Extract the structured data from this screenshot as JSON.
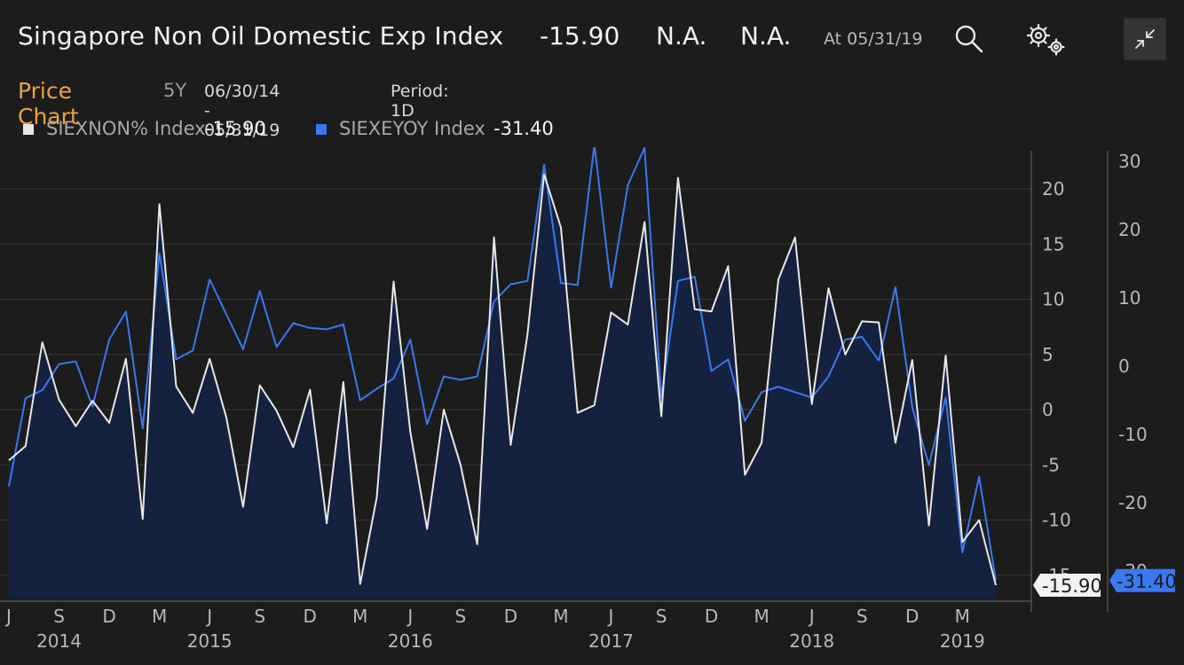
{
  "header": {
    "title": "Singapore Non Oil Domestic Exp Index",
    "last": "-15.90",
    "chg1": "N.A.",
    "chg2": "N.A.",
    "asof": "At 05/31/19"
  },
  "subheader": {
    "price_chart_label": "Price Chart",
    "period_button": "5Y",
    "date_range": "06/30/14 - 05/31/19",
    "period": "Period: 1D"
  },
  "legend": [
    {
      "name": "SIEXNON% Index",
      "value": "-15.90",
      "color": "#e8e8e8"
    },
    {
      "name": "SIEXEYOY Index",
      "value": "-31.40",
      "color": "#3a78f0"
    }
  ],
  "colors": {
    "background": "#1c1c1c",
    "area_fill": "#14213f",
    "accent": "#f0a040",
    "series1": "#e8e8e8",
    "series2": "#3a78f0"
  },
  "icons": [
    "search-icon",
    "settings-gears-icon",
    "collapse-arrows-icon"
  ],
  "chart_data": {
    "type": "line",
    "x": [
      "2014-06",
      "2014-07",
      "2014-08",
      "2014-09",
      "2014-10",
      "2014-11",
      "2014-12",
      "2015-01",
      "2015-02",
      "2015-03",
      "2015-04",
      "2015-05",
      "2015-06",
      "2015-07",
      "2015-08",
      "2015-09",
      "2015-10",
      "2015-11",
      "2015-12",
      "2016-01",
      "2016-02",
      "2016-03",
      "2016-04",
      "2016-05",
      "2016-06",
      "2016-07",
      "2016-08",
      "2016-09",
      "2016-10",
      "2016-11",
      "2016-12",
      "2017-01",
      "2017-02",
      "2017-03",
      "2017-04",
      "2017-05",
      "2017-06",
      "2017-07",
      "2017-08",
      "2017-09",
      "2017-10",
      "2017-11",
      "2017-12",
      "2018-01",
      "2018-02",
      "2018-03",
      "2018-04",
      "2018-05",
      "2018-06",
      "2018-07",
      "2018-08",
      "2018-09",
      "2018-10",
      "2018-11",
      "2018-12",
      "2019-01",
      "2019-02",
      "2019-03",
      "2019-04",
      "2019-05"
    ],
    "series": [
      {
        "name": "SIEXNON% Index",
        "axis": "left",
        "values": [
          -4.6,
          -3.3,
          6.1,
          0.9,
          -1.5,
          0.8,
          -1.2,
          4.6,
          -9.9,
          18.6,
          2.1,
          -0.3,
          4.6,
          -0.7,
          -8.8,
          2.2,
          -0.1,
          -3.4,
          1.8,
          -10.3,
          2.5,
          -15.8,
          -7.9,
          11.6,
          -2.0,
          -10.8,
          0.0,
          -5.0,
          -12.2,
          15.6,
          -3.2,
          6.8,
          21.3,
          16.5,
          -0.3,
          0.4,
          8.8,
          7.7,
          17.0,
          -0.6,
          21.0,
          9.1,
          8.9,
          13.0,
          -5.9,
          -3.0,
          11.8,
          15.6,
          0.5,
          11.0,
          5.0,
          8.0,
          7.9,
          -3.0,
          4.5,
          -10.5,
          4.9,
          -12.0,
          -10.0,
          -15.9
        ]
      },
      {
        "name": "SIEXEYOY Index",
        "axis": "right",
        "values": [
          -17.6,
          -4.7,
          -3.5,
          0.3,
          0.7,
          -5.9,
          3.9,
          8.0,
          -9.1,
          16.5,
          1.0,
          2.3,
          12.7,
          7.6,
          2.5,
          11.0,
          2.8,
          6.3,
          5.6,
          5.4,
          6.1,
          -5.0,
          -3.3,
          -1.8,
          3.9,
          -8.5,
          -1.5,
          -2.0,
          -1.5,
          9.5,
          12.0,
          12.5,
          29.5,
          12.2,
          11.9,
          32.5,
          11.5,
          26.5,
          32.0,
          -4.5,
          12.5,
          13.1,
          -0.7,
          1.0,
          -8.0,
          -3.8,
          -3.0,
          -3.8,
          -4.6,
          -1.5,
          3.9,
          4.3,
          0.8,
          11.6,
          -6.0,
          -14.5,
          -4.6,
          -27.3,
          -16.2,
          -31.4
        ]
      }
    ],
    "y_left": {
      "min": -17,
      "max": 22,
      "ticks": [
        20,
        15,
        10,
        5,
        0,
        -5,
        -10,
        -15
      ]
    },
    "y_right": {
      "min": -34,
      "max": 30,
      "ticks": [
        30,
        20,
        10,
        0,
        -10,
        -20,
        -30
      ]
    },
    "x_month_labels": [
      {
        "label": "J",
        "date": "2014-06"
      },
      {
        "label": "S",
        "date": "2014-09"
      },
      {
        "label": "D",
        "date": "2014-12"
      },
      {
        "label": "M",
        "date": "2015-03"
      },
      {
        "label": "J",
        "date": "2015-06"
      },
      {
        "label": "S",
        "date": "2015-09"
      },
      {
        "label": "D",
        "date": "2015-12"
      },
      {
        "label": "M",
        "date": "2016-03"
      },
      {
        "label": "J",
        "date": "2016-06"
      },
      {
        "label": "S",
        "date": "2016-09"
      },
      {
        "label": "D",
        "date": "2016-12"
      },
      {
        "label": "M",
        "date": "2017-03"
      },
      {
        "label": "J",
        "date": "2017-06"
      },
      {
        "label": "S",
        "date": "2017-09"
      },
      {
        "label": "D",
        "date": "2017-12"
      },
      {
        "label": "M",
        "date": "2018-03"
      },
      {
        "label": "J",
        "date": "2018-06"
      },
      {
        "label": "S",
        "date": "2018-09"
      },
      {
        "label": "D",
        "date": "2018-12"
      },
      {
        "label": "M",
        "date": "2019-03"
      }
    ],
    "x_year_labels": [
      {
        "label": "2014",
        "date": "2014-09"
      },
      {
        "label": "2015",
        "date": "2015-06"
      },
      {
        "label": "2016",
        "date": "2016-06"
      },
      {
        "label": "2017",
        "date": "2017-06"
      },
      {
        "label": "2018",
        "date": "2018-06"
      },
      {
        "label": "2019",
        "date": "2019-03"
      }
    ],
    "last_value_tags": [
      {
        "series": "SIEXNON% Index",
        "label": "-15.90"
      },
      {
        "series": "SIEXEYOY Index",
        "label": "-31.40"
      }
    ],
    "grid": true,
    "xlabel": "",
    "ylabel": ""
  }
}
